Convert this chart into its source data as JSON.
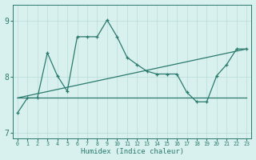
{
  "xlabel": "Humidex (Indice chaleur)",
  "bg_color": "#d8f0ee",
  "grid_color": "#b8dcd8",
  "line_color": "#2a7a6e",
  "line1_x": [
    0,
    1,
    2,
    3,
    4,
    5,
    6,
    7,
    8,
    9,
    10,
    11,
    12,
    13,
    14,
    15,
    16,
    17,
    18,
    19,
    20,
    21,
    22,
    23
  ],
  "line1_y": [
    7.35,
    7.62,
    7.62,
    8.43,
    8.02,
    7.74,
    8.72,
    8.72,
    8.72,
    9.02,
    8.72,
    8.35,
    8.22,
    8.1,
    8.05,
    8.05,
    8.05,
    7.72,
    7.55,
    7.55,
    8.02,
    8.22,
    8.5,
    8.5
  ],
  "line2_x": [
    0,
    23
  ],
  "line2_y": [
    7.62,
    7.62
  ],
  "line3_x": [
    0,
    23
  ],
  "line3_y": [
    7.62,
    8.5
  ],
  "xlim": [
    0,
    23
  ],
  "ylim": [
    6.9,
    9.3
  ],
  "yticks": [
    7,
    8,
    9
  ],
  "xticks": [
    0,
    1,
    2,
    3,
    4,
    5,
    6,
    7,
    8,
    9,
    10,
    11,
    12,
    13,
    14,
    15,
    16,
    17,
    18,
    19,
    20,
    21,
    22,
    23
  ]
}
